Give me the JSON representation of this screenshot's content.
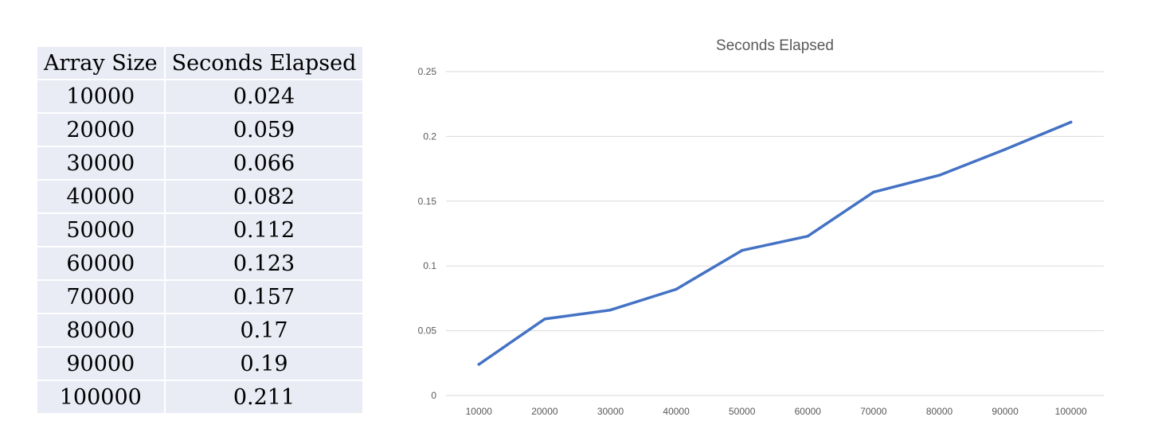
{
  "table": {
    "headers": [
      "Array Size",
      "Seconds Elapsed"
    ],
    "rows": [
      [
        "10000",
        "0.024"
      ],
      [
        "20000",
        "0.059"
      ],
      [
        "30000",
        "0.066"
      ],
      [
        "40000",
        "0.082"
      ],
      [
        "50000",
        "0.112"
      ],
      [
        "60000",
        "0.123"
      ],
      [
        "70000",
        "0.157"
      ],
      [
        "80000",
        "0.17"
      ],
      [
        "90000",
        "0.19"
      ],
      [
        "100000",
        "0.211"
      ]
    ],
    "cell_color": "#e9ebf5"
  },
  "chart_data": {
    "type": "line",
    "title": "Seconds Elapsed",
    "xlabel": "",
    "ylabel": "",
    "categories": [
      "10000",
      "20000",
      "30000",
      "40000",
      "50000",
      "60000",
      "70000",
      "80000",
      "90000",
      "100000"
    ],
    "series": [
      {
        "values": [
          0.024,
          0.059,
          0.066,
          0.082,
          0.112,
          0.123,
          0.157,
          0.17,
          0.19,
          0.211
        ],
        "color": "#4472c4"
      }
    ],
    "ylim": [
      0,
      0.25
    ],
    "yticks": [
      "0",
      "0.05",
      "0.1",
      "0.15",
      "0.2",
      "0.25"
    ],
    "ytick_values": [
      0,
      0.05,
      0.1,
      0.15,
      0.2,
      0.25
    ],
    "grid": true,
    "legend": "none",
    "grid_color": "#d9d9d9"
  }
}
